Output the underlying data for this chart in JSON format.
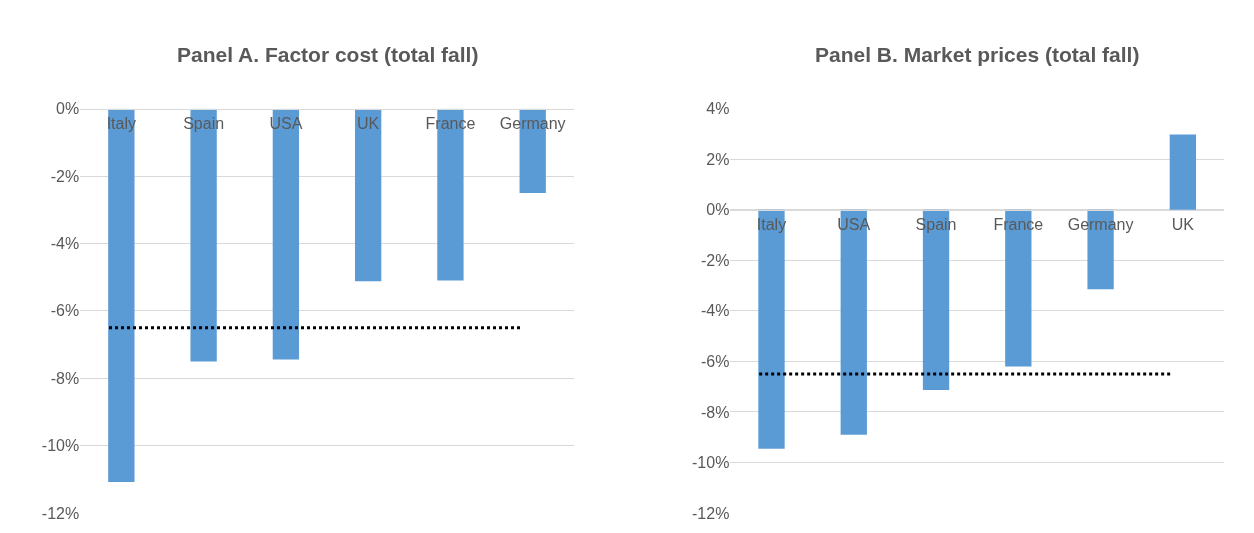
{
  "chart_data": [
    {
      "type": "bar",
      "title": "Panel A. Factor cost (total fall)",
      "categories": [
        "Italy",
        "Spain",
        "USA",
        "UK",
        "France",
        "Germany"
      ],
      "series": [
        {
          "color": "#5b9bd5",
          "values": [
            -11.08,
            -7.5,
            -7.44,
            -5.12,
            -5.1,
            -2.5
          ]
        }
      ],
      "ylim": [
        -12,
        0
      ],
      "yticks": [
        {
          "value": -12,
          "label": "-12%"
        },
        {
          "value": -10,
          "label": "-10%"
        },
        {
          "value": -8,
          "label": "-8%"
        },
        {
          "value": -6,
          "label": "-6%"
        },
        {
          "value": -4,
          "label": "-4%"
        },
        {
          "value": -2,
          "label": "-2%"
        },
        {
          "value": 0,
          "label": "0%"
        }
      ],
      "grid": "y",
      "ref_lines": [
        {
          "axis": "y",
          "value": -6.5,
          "color": "#000000",
          "line_style": "dotted"
        }
      ]
    },
    {
      "type": "bar",
      "title": "Panel B. Market prices (total fall)",
      "categories": [
        "Italy",
        "USA",
        "Spain",
        "France",
        "Germany",
        "UK"
      ],
      "series": [
        {
          "color": "#5b9bd5",
          "values": [
            -9.46,
            -8.9,
            -7.13,
            -6.2,
            -3.14,
            2.98
          ]
        }
      ],
      "ylim": [
        -12,
        4
      ],
      "yticks": [
        {
          "value": -12,
          "label": "-12%"
        },
        {
          "value": -10,
          "label": "-10%"
        },
        {
          "value": -8,
          "label": "-8%"
        },
        {
          "value": -6,
          "label": "-6%"
        },
        {
          "value": -4,
          "label": "-4%"
        },
        {
          "value": -2,
          "label": "-2%"
        },
        {
          "value": 0,
          "label": "0%"
        },
        {
          "value": 2,
          "label": "2%"
        },
        {
          "value": 4,
          "label": "4%"
        }
      ],
      "grid": "y",
      "ref_lines": [
        {
          "axis": "y",
          "value": -6.5,
          "color": "#000000",
          "line_style": "dotted"
        }
      ]
    }
  ]
}
